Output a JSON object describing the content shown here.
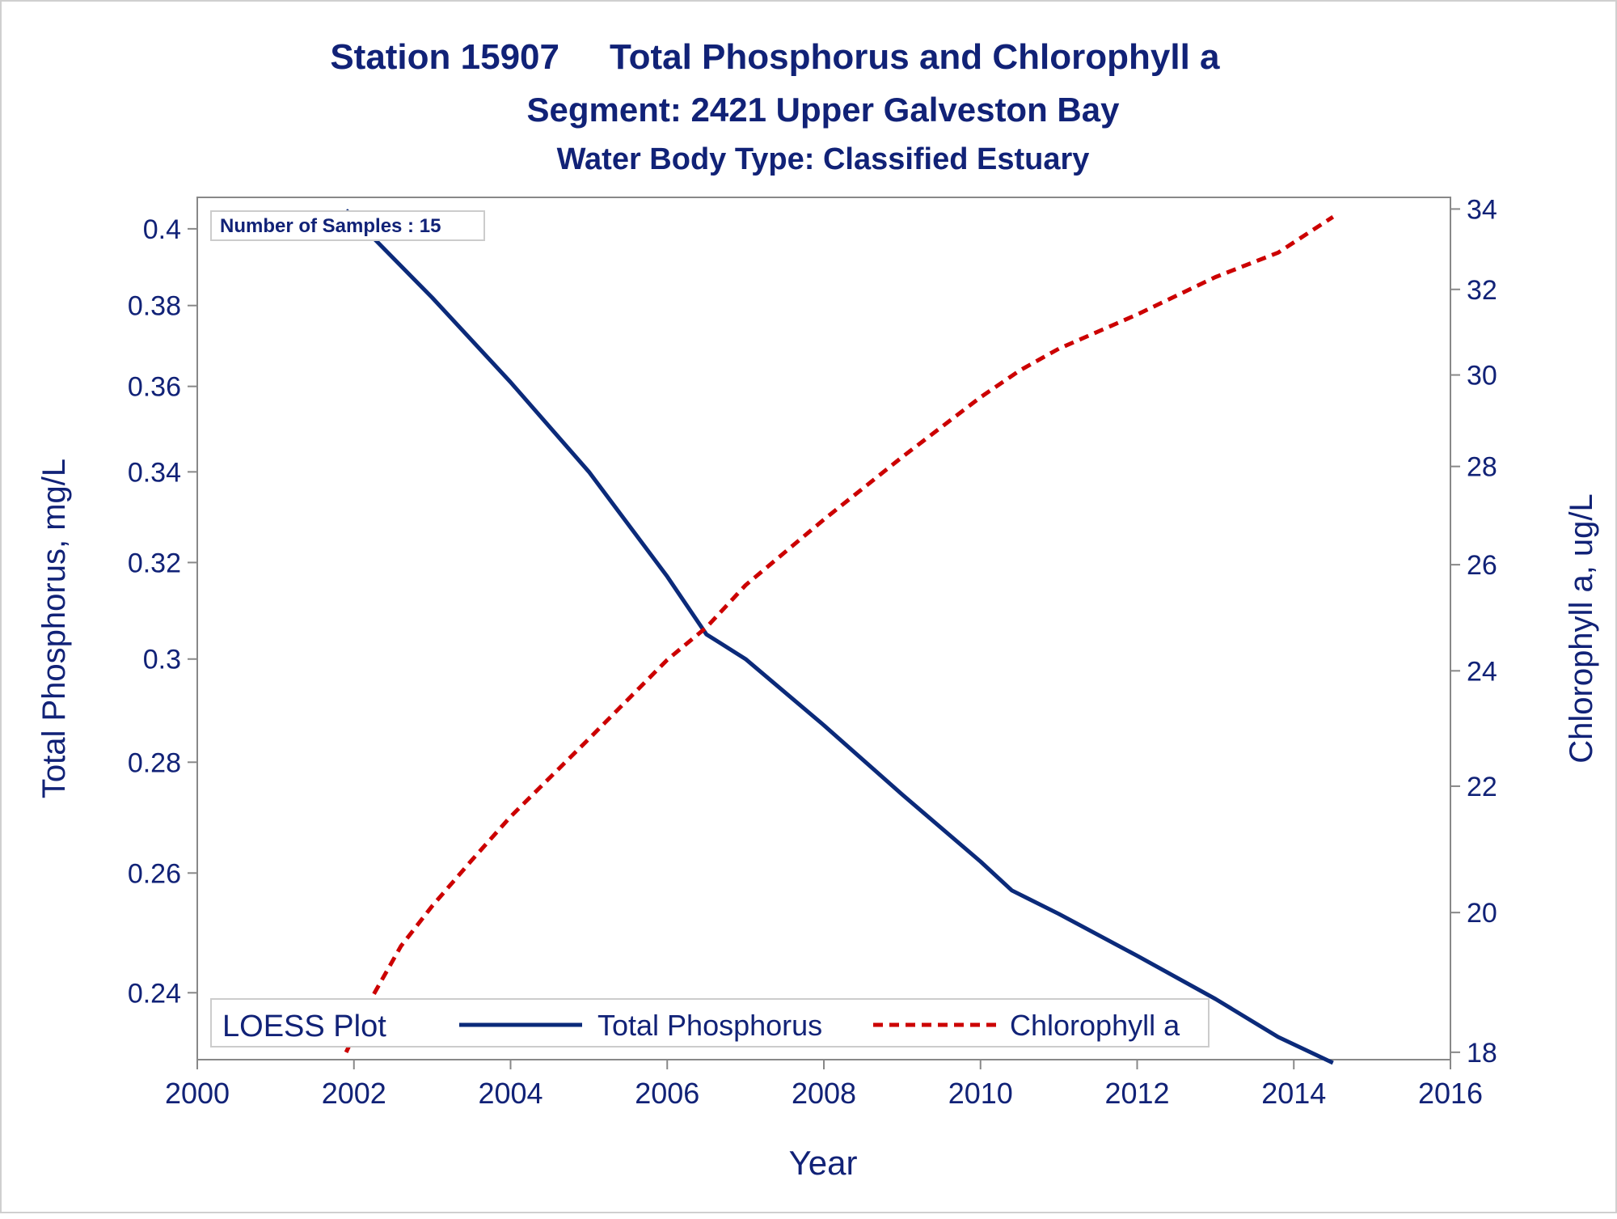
{
  "titles": {
    "line1_left": "Station 15907",
    "line1_right": "Total Phosphorus and Chlorophyll a",
    "line2": "Segment: 2421  Upper Galveston Bay",
    "line3": "Water Body Type: Classified Estuary"
  },
  "colors": {
    "text": "#112277",
    "phosphorus": "#0B2A7A",
    "chlorophyll": "#CC0000",
    "axis": "#888888"
  },
  "chart_data": {
    "type": "line",
    "xlabel": "Year",
    "ylabel_left": "Total Phosphorus, mg/L",
    "ylabel_right": "Chlorophyll a, ug/L",
    "xlim": [
      2000,
      2016
    ],
    "ylim_left": [
      0.2295,
      0.4085
    ],
    "ylim_right": [
      17.9,
      34.3
    ],
    "y_scale": "log",
    "x_ticks": [
      "2000",
      "2002",
      "2004",
      "2006",
      "2008",
      "2010",
      "2012",
      "2014",
      "2016"
    ],
    "y_ticks_left": [
      "0.24",
      "0.26",
      "0.28",
      "0.3",
      "0.32",
      "0.34",
      "0.36",
      "0.38",
      "0.4"
    ],
    "y_ticks_right": [
      "18",
      "20",
      "22",
      "24",
      "26",
      "28",
      "30",
      "32",
      "34"
    ],
    "annotation": "Number of Samples : 15",
    "legend": {
      "title": "LOESS Plot",
      "position": "bottom-left inside",
      "entries": [
        "Total Phosphorus",
        "Chlorophyll a"
      ]
    },
    "series": [
      {
        "name": "Total Phosphorus",
        "axis": "left",
        "style": "solid",
        "x": [
          2001.9,
          2003,
          2004,
          2005,
          2006,
          2006.5,
          2007,
          2008,
          2009,
          2010,
          2010.4,
          2011,
          2012,
          2013,
          2013.8,
          2014.5
        ],
        "y": [
          0.405,
          0.382,
          0.361,
          0.34,
          0.317,
          0.305,
          0.3,
          0.287,
          0.274,
          0.262,
          0.257,
          0.253,
          0.246,
          0.239,
          0.233,
          0.229
        ]
      },
      {
        "name": "Chlorophyll a",
        "axis": "right",
        "style": "dashed",
        "x": [
          2001.9,
          2002.2,
          2002.6,
          2003,
          2003.5,
          2004,
          2005,
          2006,
          2006.5,
          2007,
          2008,
          2009,
          2010,
          2010.5,
          2011,
          2012,
          2013,
          2013.8,
          2014.5
        ],
        "y": [
          18.0,
          18.7,
          19.5,
          20.1,
          20.8,
          21.5,
          22.8,
          24.2,
          24.8,
          25.6,
          26.9,
          28.2,
          29.5,
          30.1,
          30.6,
          31.4,
          32.3,
          32.9,
          33.8
        ]
      }
    ]
  }
}
